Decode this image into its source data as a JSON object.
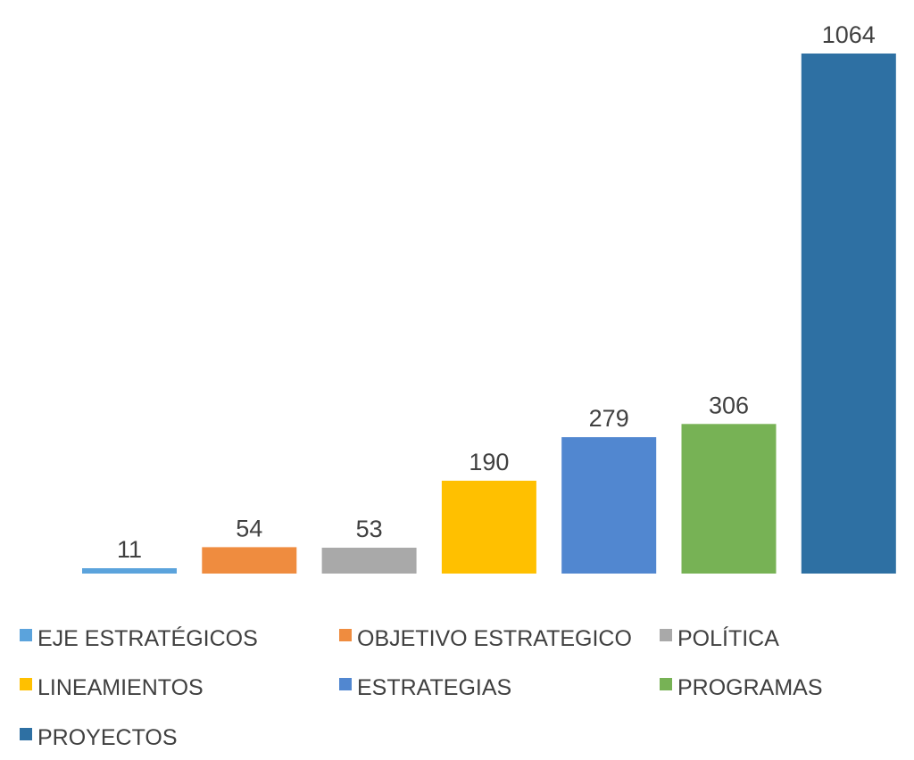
{
  "chart_data": {
    "type": "bar",
    "categories": [
      "EJE ESTRATÉGICOS",
      "OBJETIVO ESTRATEGICO",
      "POLÍTICA",
      "LINEAMIENTOS",
      "ESTRATEGIAS",
      "PROGRAMAS",
      "PROYECTOS"
    ],
    "values": [
      11,
      54,
      53,
      190,
      279,
      306,
      1064
    ],
    "data_labels": [
      "11",
      "54",
      "53",
      "190",
      "279",
      "306",
      "1064"
    ],
    "colors": [
      "#5ba3dc",
      "#ef8c3f",
      "#a9a9a9",
      "#ffc000",
      "#5187d0",
      "#77b255",
      "#2e70a3"
    ],
    "title": "",
    "xlabel": "",
    "ylabel": "",
    "ylim": [
      0,
      1064
    ],
    "grid": false,
    "legend": {
      "position": "bottom"
    }
  }
}
